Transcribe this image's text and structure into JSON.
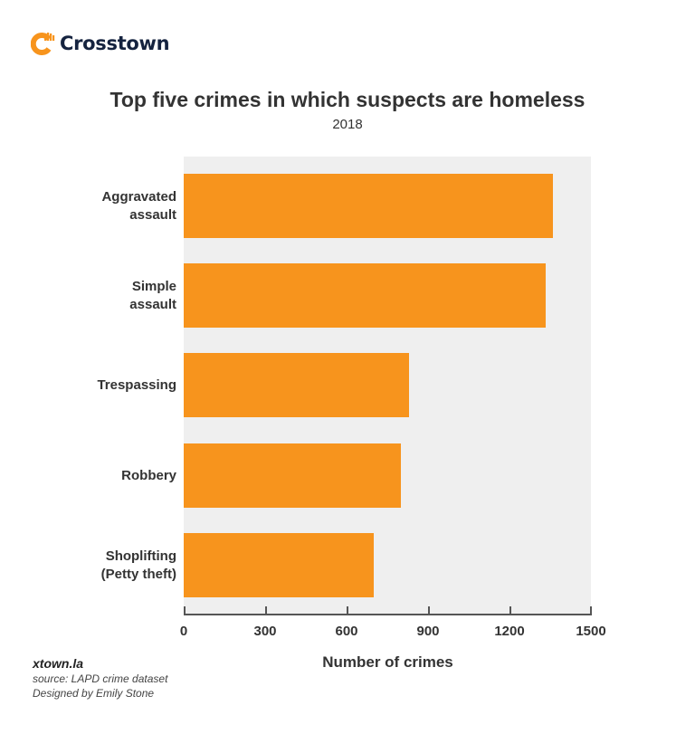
{
  "brand": {
    "name": "Crosstown",
    "icon": "crosstown-logo-icon",
    "accent_color": "#f7941d",
    "text_color": "#15233f"
  },
  "chart_data": {
    "type": "bar",
    "orientation": "horizontal",
    "title": "Top five crimes in which suspects are homeless",
    "subtitle": "2018",
    "categories": [
      "Aggravated assault",
      "Simple assault",
      "Trespassing",
      "Robbery",
      "Shoplifting (Petty theft)"
    ],
    "category_lines": [
      [
        "Aggravated",
        "assault"
      ],
      [
        "Simple",
        "assault"
      ],
      [
        "Trespassing"
      ],
      [
        "Robbery"
      ],
      [
        "Shoplifting",
        "(Petty theft)"
      ]
    ],
    "values": [
      1360,
      1333,
      830,
      800,
      700
    ],
    "xlabel": "Number of crimes",
    "ylabel": "",
    "xlim": [
      0,
      1500
    ],
    "xticks": [
      "0",
      "300",
      "600",
      "900",
      "1200",
      "1500"
    ],
    "xtick_values": [
      0,
      300,
      600,
      900,
      1200,
      1500
    ],
    "bar_color": "#f7941d",
    "plot_background": "#efefef",
    "grid": false,
    "legend": null
  },
  "footer": {
    "site": "xtown.la",
    "source": "source: LAPD crime dataset",
    "credit": "Designed by Emily Stone"
  }
}
